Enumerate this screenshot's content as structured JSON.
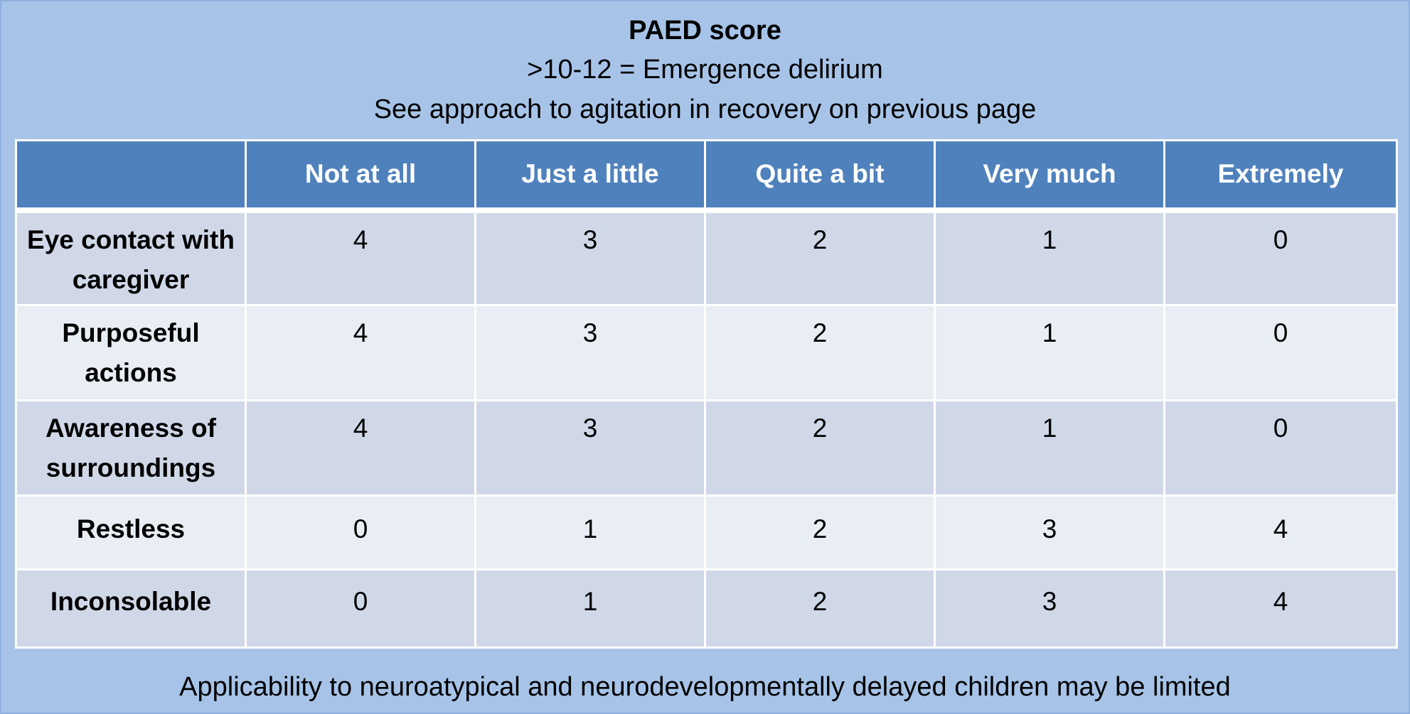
{
  "title": "PAED score",
  "subtitle_lines": [
    ">10-12 = Emergence delirium",
    "See approach to agitation in recovery on previous page"
  ],
  "table": {
    "columns": [
      "",
      "Not at all",
      "Just a little",
      "Quite a bit",
      "Very much",
      "Extremely"
    ],
    "rows": [
      {
        "label": "Eye contact with caregiver",
        "values": [
          "4",
          "3",
          "2",
          "1",
          "0"
        ]
      },
      {
        "label": "Purposeful actions",
        "values": [
          "4",
          "3",
          "2",
          "1",
          "0"
        ]
      },
      {
        "label": "Awareness of surroundings",
        "values": [
          "4",
          "3",
          "2",
          "1",
          "0"
        ]
      },
      {
        "label": "Restless",
        "values": [
          "0",
          "1",
          "2",
          "3",
          "4"
        ]
      },
      {
        "label": "Inconsolable",
        "values": [
          "0",
          "1",
          "2",
          "3",
          "4"
        ]
      }
    ]
  },
  "footer": "Applicability to neuroatypical and neurodevelopmentally delayed children may be limited",
  "colors": {
    "background": "#a7c4e8",
    "header": "#4f81bd",
    "row_dark": "#d0d8e8",
    "row_light": "#e9edf4"
  }
}
